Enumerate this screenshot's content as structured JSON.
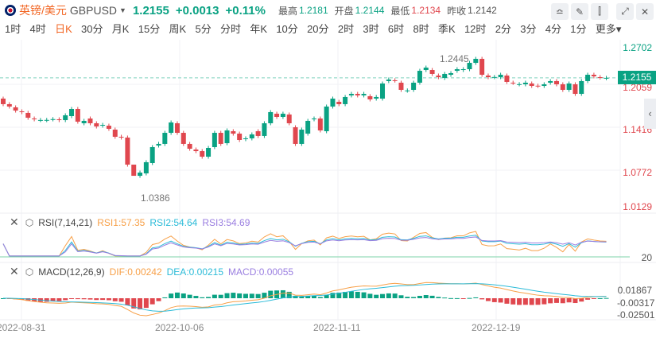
{
  "header": {
    "name": "英镑/美元",
    "code": "GBPUSD",
    "price": "1.2155",
    "change": "+0.0013",
    "change_pct": "+0.11%",
    "high_label": "最高",
    "high": "1.2181",
    "open_label": "开盘",
    "open": "1.2144",
    "low_label": "最低",
    "low": "1.2134",
    "prev_label": "昨收",
    "prev": "1.2142"
  },
  "toolbar": [
    "indicator-icon",
    "draw-icon",
    "candle-type-icon",
    "fullscreen-icon",
    "close-icon"
  ],
  "timeframes": [
    "1时",
    "4时",
    "日K",
    "30分",
    "月K",
    "15分",
    "周K",
    "5分",
    "分时",
    "年K",
    "10分",
    "20分",
    "2时",
    "3时",
    "6时",
    "8时",
    "季K",
    "12时",
    "2分",
    "3分",
    "4分",
    "1分",
    "更多"
  ],
  "active_timeframe": "日K",
  "price_axis": [
    "1.2702",
    "1.2059",
    "1.1416",
    "1.0772",
    "1.0129"
  ],
  "current_price_tag": "1.2155",
  "markers": {
    "high": "1.2445",
    "low": "1.0386"
  },
  "rsi": {
    "name": "RSI(7,14,21)",
    "rsi1": "RSI1:57.35",
    "rsi2": "RSI2:54.64",
    "rsi3": "RSI3:54.69",
    "level": "20"
  },
  "macd": {
    "name": "MACD(12,26,9)",
    "dif": "DIF:0.00242",
    "dea": "DEA:0.00215",
    "macd": "MACD:0.00055",
    "axis": [
      "0.01867",
      "-0.00317",
      "-0.02501"
    ]
  },
  "dates": [
    "2022-08-31",
    "2022-10-06",
    "2022-11-11",
    "2022-12-19"
  ],
  "colors": {
    "up": "#0aa283",
    "down": "#e0474e",
    "rsi1": "#f7a048",
    "rsi2": "#2bbbd8",
    "rsi3": "#9a7ee0",
    "accent": "#f26522"
  },
  "chart_data": {
    "type": "candlestick",
    "fields": [
      "open",
      "close"
    ],
    "candles": [
      [
        1.1845,
        1.1762
      ],
      [
        1.1762,
        1.1726
      ],
      [
        1.1714,
        1.1666
      ],
      [
        1.1654,
        1.1642
      ],
      [
        1.1631,
        1.1559
      ],
      [
        1.1547,
        1.1535
      ],
      [
        1.1523,
        1.1525
      ],
      [
        1.1523,
        1.1526
      ],
      [
        1.1535,
        1.1538
      ],
      [
        1.1535,
        1.1523
      ],
      [
        1.1523,
        1.1595
      ],
      [
        1.1583,
        1.169
      ],
      [
        1.169,
        1.15
      ],
      [
        1.1476,
        1.1512
      ],
      [
        1.1547,
        1.1476
      ],
      [
        1.1476,
        1.1428
      ],
      [
        1.144,
        1.1452
      ],
      [
        1.144,
        1.1393
      ],
      [
        1.1381,
        1.1274
      ],
      [
        1.1274,
        1.1262
      ],
      [
        1.1262,
        1.0857
      ],
      [
        1.0857,
        1.069
      ],
      [
        1.069,
        1.0738
      ],
      [
        1.0726,
        1.0893
      ],
      [
        1.0881,
        1.1119
      ],
      [
        1.1143,
        1.1167
      ],
      [
        1.1167,
        1.1333
      ],
      [
        1.1333,
        1.1488
      ],
      [
        1.1476,
        1.1333
      ],
      [
        1.1333,
        1.1167
      ],
      [
        1.1167,
        1.1095
      ],
      [
        1.1083,
        1.1059
      ],
      [
        1.1059,
        1.0976
      ],
      [
        1.0976,
        1.1107
      ],
      [
        1.1119,
        1.1333
      ],
      [
        1.1333,
        1.1167
      ],
      [
        1.1178,
        1.1369
      ],
      [
        1.1357,
        1.1321
      ],
      [
        1.1321,
        1.1226
      ],
      [
        1.1238,
        1.125
      ],
      [
        1.125,
        1.1309
      ],
      [
        1.1357,
        1.1286
      ],
      [
        1.1286,
        1.1476
      ],
      [
        1.1476,
        1.1643
      ],
      [
        1.1619,
        1.1571
      ],
      [
        1.1571,
        1.1619
      ],
      [
        1.1607,
        1.1476
      ],
      [
        1.1416,
        1.1167
      ],
      [
        1.1167,
        1.1381
      ],
      [
        1.1321,
        1.1512
      ],
      [
        1.1535,
        1.1547
      ],
      [
        1.1547,
        1.1369
      ],
      [
        1.1357,
        1.1726
      ],
      [
        1.1726,
        1.1845
      ],
      [
        1.1797,
        1.1762
      ],
      [
        1.1762,
        1.1869
      ],
      [
        1.1893,
        1.1916
      ],
      [
        1.1916,
        1.1893
      ],
      [
        1.1893,
        1.1916
      ],
      [
        1.1881,
        1.1833
      ],
      [
        1.1845,
        1.1869
      ],
      [
        1.1845,
        1.2071
      ],
      [
        1.2107,
        1.213
      ],
      [
        1.2119,
        1.2115
      ],
      [
        1.2083,
        1.1976
      ],
      [
        1.1964,
        1.1967
      ],
      [
        1.1976,
        1.2083
      ],
      [
        1.2083,
        1.2261
      ],
      [
        1.2273,
        1.2309
      ],
      [
        1.2273,
        1.2214
      ],
      [
        1.219,
        1.2166
      ],
      [
        1.2154,
        1.2214
      ],
      [
        1.2202,
        1.2226
      ],
      [
        1.2261,
        1.2285
      ],
      [
        1.2273,
        1.2285
      ],
      [
        1.2285,
        1.238
      ],
      [
        1.238,
        1.244
      ],
      [
        1.244,
        1.2202
      ],
      [
        1.219,
        1.2166
      ],
      [
        1.2166,
        1.2168
      ],
      [
        1.2166,
        1.2202
      ],
      [
        1.219,
        1.2095
      ],
      [
        1.2083,
        1.208
      ],
      [
        1.2059,
        1.2061
      ],
      [
        1.2059,
        1.2083
      ],
      [
        1.2071,
        1.2035
      ],
      [
        1.2038,
        1.2035
      ],
      [
        1.2035,
        1.2059
      ],
      [
        1.2083,
        1.2107
      ],
      [
        1.2107,
        1.2059
      ],
      [
        1.2059,
        1.1976
      ],
      [
        1.1976,
        1.2071
      ],
      [
        1.2059,
        1.1916
      ],
      [
        1.1916,
        1.2107
      ],
      [
        1.2107,
        1.2202
      ],
      [
        1.2202,
        1.2178
      ],
      [
        1.2166,
        1.216
      ],
      [
        1.215,
        1.2155
      ]
    ],
    "ylim": [
      1.0129,
      1.2702
    ]
  }
}
